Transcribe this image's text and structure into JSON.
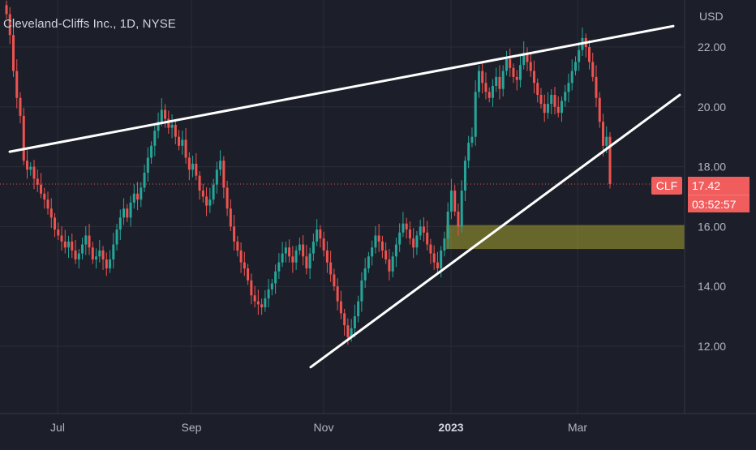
{
  "chart_data": {
    "type": "candlestick",
    "title": "Cleveland-Cliffs Inc., 1D, NYSE",
    "currency": "USD",
    "symbol": "CLF",
    "last_price": "17.42",
    "countdown": "03:52:57",
    "y_ticks": [
      "22.00",
      "20.00",
      "18.00",
      "16.00",
      "14.00",
      "12.00"
    ],
    "ylim": [
      10.3,
      23.2
    ],
    "x_ticks": [
      {
        "label": "Jul",
        "bold": false
      },
      {
        "label": "Sep",
        "bold": false
      },
      {
        "label": "Nov",
        "bold": false
      },
      {
        "label": "2023",
        "bold": true
      },
      {
        "label": "Mar",
        "bold": false
      }
    ],
    "colors": {
      "up": "#26a69a",
      "down": "#ef5350",
      "trendline": "#ffffff",
      "zone": "#a8a32e",
      "price_line": "#ef5350",
      "background": "#1c1f29"
    },
    "candles_approx_close": [
      23.1,
      22.4,
      21.2,
      20.3,
      19.7,
      18.2,
      17.9,
      18.0,
      17.6,
      17.4,
      17.1,
      16.9,
      16.6,
      16.3,
      15.9,
      15.7,
      15.5,
      15.3,
      15.5,
      15.2,
      14.9,
      15.1,
      15.4,
      15.7,
      15.3,
      14.9,
      15.0,
      15.2,
      14.9,
      14.6,
      14.9,
      15.4,
      15.9,
      16.3,
      16.6,
      16.3,
      16.8,
      17.1,
      16.9,
      17.3,
      17.8,
      18.3,
      18.7,
      19.2,
      19.5,
      19.9,
      19.6,
      19.3,
      19.4,
      19.0,
      18.7,
      18.9,
      18.3,
      17.9,
      18.1,
      17.7,
      17.2,
      17.0,
      16.7,
      16.9,
      17.4,
      17.9,
      18.2,
      17.3,
      16.6,
      16.0,
      15.5,
      15.2,
      14.8,
      14.6,
      14.2,
      13.7,
      13.5,
      13.4,
      13.3,
      13.6,
      13.9,
      14.1,
      14.5,
      14.8,
      15.1,
      15.3,
      15.0,
      14.8,
      15.2,
      15.4,
      15.0,
      14.6,
      15.1,
      15.5,
      15.9,
      15.6,
      15.2,
      14.8,
      14.4,
      14.0,
      13.5,
      13.1,
      12.7,
      12.3,
      12.6,
      13.0,
      13.5,
      14.2,
      14.6,
      15.0,
      15.3,
      15.7,
      15.5,
      15.2,
      14.9,
      14.5,
      15.0,
      15.4,
      15.8,
      16.1,
      15.9,
      15.6,
      15.3,
      15.7,
      16.0,
      15.8,
      15.4,
      15.1,
      14.8,
      14.6,
      15.2,
      15.6,
      16.5,
      17.2,
      16.5,
      16.0,
      17.2,
      18.2,
      18.8,
      19.0,
      20.5,
      21.2,
      20.8,
      20.5,
      20.3,
      20.7,
      21.0,
      20.6,
      21.2,
      21.6,
      21.3,
      21.0,
      20.9,
      21.4,
      21.8,
      21.5,
      21.2,
      20.8,
      20.4,
      20.1,
      19.8,
      20.1,
      20.4,
      20.0,
      19.8,
      20.2,
      20.5,
      20.8,
      21.2,
      21.5,
      21.9,
      22.3,
      22.0,
      21.5,
      21.0,
      20.3,
      19.5,
      18.7,
      19.0,
      17.42
    ],
    "trendlines": [
      {
        "from": [
          "Jun",
          18.5
        ],
        "to": [
          "Apr",
          22.7
        ],
        "role": "resistance"
      },
      {
        "from": [
          "Nov",
          11.3
        ],
        "to": [
          "Apr",
          20.4
        ],
        "role": "support"
      }
    ],
    "zone": {
      "from_index": 128,
      "to_end": true,
      "low": 15.25,
      "high": 16.05
    },
    "grid": true
  }
}
